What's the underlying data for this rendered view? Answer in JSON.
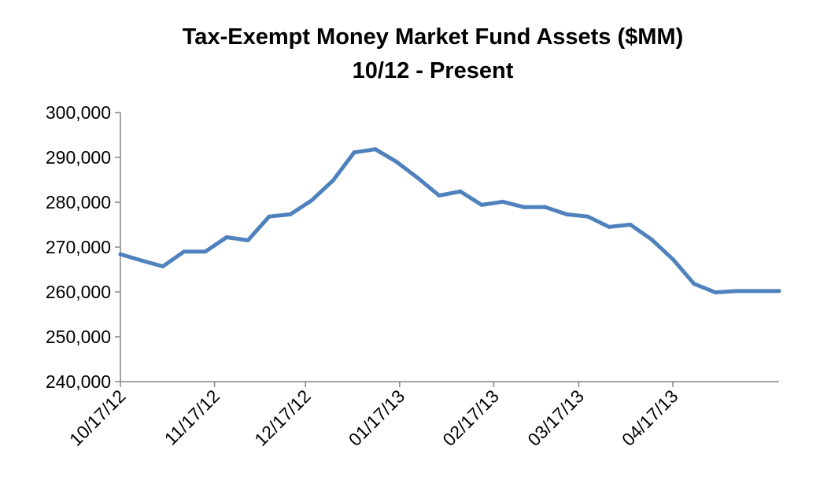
{
  "chart_data": {
    "type": "line",
    "title": "Tax-Exempt Money Market Fund Assets  ($MM)",
    "subtitle": "10/12 - Present",
    "xlabel": "",
    "ylabel": "",
    "ylim": [
      240000,
      300000
    ],
    "yticks": [
      240000,
      250000,
      260000,
      270000,
      280000,
      290000,
      300000
    ],
    "ytick_labels": [
      "240,000",
      "250,000",
      "260,000",
      "270,000",
      "280,000",
      "290,000",
      "300,000"
    ],
    "xlim": [
      "2012-10-17",
      "2013-05-22"
    ],
    "xticks": [
      "2012-10-17",
      "2012-11-17",
      "2012-12-17",
      "2013-01-17",
      "2013-02-17",
      "2013-03-17",
      "2013-04-17"
    ],
    "xtick_labels": [
      "10/17/12",
      "11/17/12",
      "12/17/12",
      "01/17/13",
      "02/17/13",
      "03/17/13",
      "04/17/13"
    ],
    "grid": false,
    "legend": "none",
    "series": [
      {
        "color": "#4F81BD",
        "x": [
          "2012-10-17",
          "2012-10-24",
          "2012-10-31",
          "2012-11-07",
          "2012-11-14",
          "2012-11-21",
          "2012-11-28",
          "2012-12-05",
          "2012-12-12",
          "2012-12-19",
          "2012-12-26",
          "2013-01-02",
          "2013-01-09",
          "2013-01-16",
          "2013-01-23",
          "2013-01-30",
          "2013-02-06",
          "2013-02-13",
          "2013-02-20",
          "2013-02-27",
          "2013-03-06",
          "2013-03-13",
          "2013-03-20",
          "2013-03-27",
          "2013-04-03",
          "2013-04-10",
          "2013-04-17",
          "2013-04-24",
          "2013-05-01",
          "2013-05-08",
          "2013-05-15",
          "2013-05-22"
        ],
        "values": [
          268400,
          267000,
          265700,
          269000,
          269000,
          272200,
          271500,
          276800,
          277300,
          280400,
          284800,
          291100,
          291800,
          289000,
          285400,
          281500,
          282400,
          279400,
          280100,
          278900,
          278900,
          277300,
          276800,
          274500,
          275000,
          271700,
          267300,
          261800,
          259900,
          260200,
          260200,
          260200
        ]
      }
    ]
  }
}
